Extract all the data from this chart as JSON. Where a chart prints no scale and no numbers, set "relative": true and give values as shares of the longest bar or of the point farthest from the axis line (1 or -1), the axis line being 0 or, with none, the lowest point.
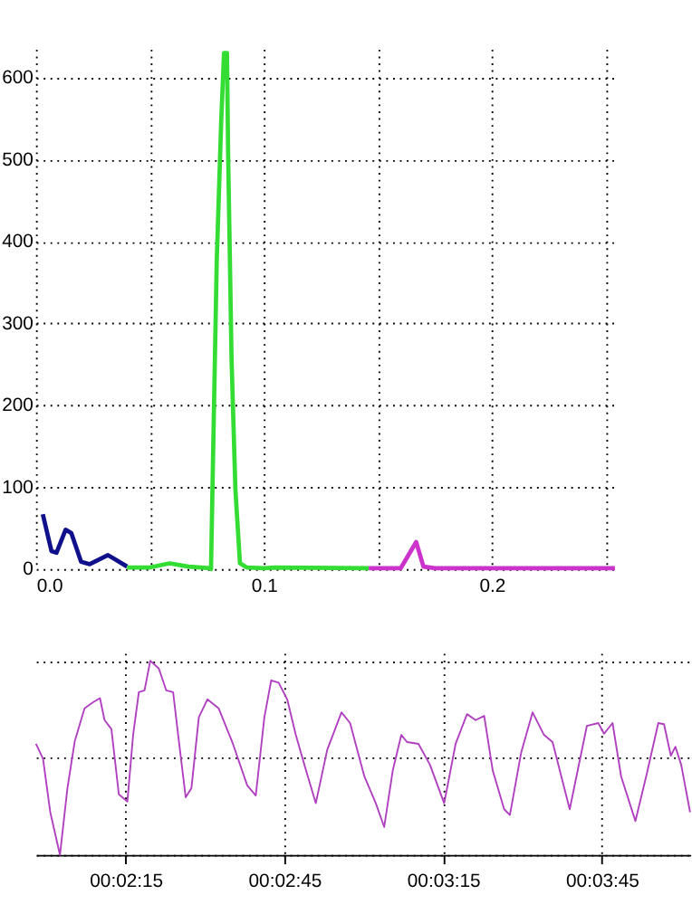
{
  "chart_data": [
    {
      "type": "line",
      "xlim": [
        0,
        0.254
      ],
      "xticks": [
        {
          "value": 0,
          "label": "0.0"
        },
        {
          "value": 0.05,
          "label": null
        },
        0.1,
        {
          "value": 0.15,
          "label": null
        },
        0.2,
        {
          "value": 0.25,
          "label": null
        }
      ],
      "ylim": [
        0,
        635
      ],
      "yticks": [
        0,
        100,
        200,
        300,
        400,
        500,
        600
      ],
      "grid": true,
      "line_style": "solid",
      "marker": "none",
      "series": [
        {
          "color": "#10108c",
          "x": [
            0.003,
            0.0068,
            0.009,
            0.013,
            0.0155,
            0.0198,
            0.0236,
            0.0316,
            0.034,
            0.04
          ],
          "values": [
            67,
            22,
            20,
            48,
            44,
            9,
            6,
            17,
            13,
            3
          ]
        },
        {
          "color": "#33dd33",
          "x": [
            0.04,
            0.05,
            0.0586,
            0.067,
            0.0764,
            0.0768,
            0.0778,
            0.0793,
            0.0813,
            0.0825,
            0.0838,
            0.0843,
            0.0858,
            0.0875,
            0.0895,
            0.0925,
            0.1,
            0.105,
            0.146
          ],
          "values": [
            2,
            2,
            7,
            3,
            1,
            0,
            153,
            375,
            549,
            630,
            630,
            508,
            257,
            97,
            7,
            2,
            1,
            2,
            1
          ]
        },
        {
          "color": "#cc33cc",
          "x": [
            0.146,
            0.16,
            0.1668,
            0.17,
            0.175,
            0.24,
            0.254
          ],
          "values": [
            1,
            1,
            33,
            3,
            1,
            1,
            1
          ]
        }
      ]
    },
    {
      "type": "line",
      "relative": true,
      "tick_labels": "x",
      "grid": true,
      "line_style": "solid",
      "marker": "none",
      "xlim": [
        0.03279,
        0.06714
      ],
      "xticks": [
        {
          "value": 0.0375,
          "label": "00:02:15"
        },
        {
          "value": 0.045833,
          "label": "00:02:45"
        },
        {
          "value": 0.054167,
          "label": "00:03:15"
        },
        {
          "value": 0.0625,
          "label": "00:03:45"
        }
      ],
      "series": [
        {
          "color": "#b040c0",
          "x": [
            0.03279,
            0.03316,
            0.03354,
            0.03405,
            0.03444,
            0.03483,
            0.03534,
            0.03579,
            0.03615,
            0.03639,
            0.03675,
            0.03714,
            0.03759,
            0.03789,
            0.03819,
            0.03849,
            0.03879,
            0.03924,
            0.03963,
            0.03999,
            0.04029,
            0.04065,
            0.04095,
            0.04134,
            0.04179,
            0.04238,
            0.04313,
            0.04388,
            0.04433,
            0.04478,
            0.04514,
            0.04553,
            0.04598,
            0.04643,
            0.04688,
            0.04748,
            0.04808,
            0.04883,
            0.04928,
            0.05003,
            0.05063,
            0.05107,
            0.05152,
            0.05197,
            0.05227,
            0.05287,
            0.05347,
            0.05422,
            0.05482,
            0.05542,
            0.05587,
            0.05632,
            0.05677,
            0.05737,
            0.05767,
            0.05826,
            0.05886,
            0.05946,
            0.05991,
            0.06081,
            0.06171,
            0.06231,
            0.06261,
            0.06306,
            0.06351,
            0.06426,
            0.06486,
            0.06546,
            0.06576,
            0.06612,
            0.06636,
            0.06666,
            0.06713
          ],
          "values": [
            0.572,
            0.495,
            0.22,
            0,
            0.343,
            0.587,
            0.755,
            0.786,
            0.807,
            0.694,
            0.648,
            0.312,
            0.275,
            0.618,
            0.838,
            0.847,
            1,
            0.96,
            0.847,
            0.838,
            0.587,
            0.297,
            0.343,
            0.709,
            0.801,
            0.755,
            0.572,
            0.358,
            0.306,
            0.709,
            0.899,
            0.887,
            0.801,
            0.618,
            0.465,
            0.266,
            0.541,
            0.734,
            0.679,
            0.404,
            0.266,
            0.144,
            0.434,
            0.618,
            0.581,
            0.572,
            0.465,
            0.266,
            0.572,
            0.725,
            0.694,
            0.716,
            0.434,
            0.235,
            0.205,
            0.526,
            0.734,
            0.618,
            0.581,
            0.235,
            0.664,
            0.679,
            0.624,
            0.679,
            0.404,
            0.174,
            0.419,
            0.679,
            0.673,
            0.511,
            0.557,
            0.465,
            0.22
          ]
        }
      ]
    }
  ]
}
